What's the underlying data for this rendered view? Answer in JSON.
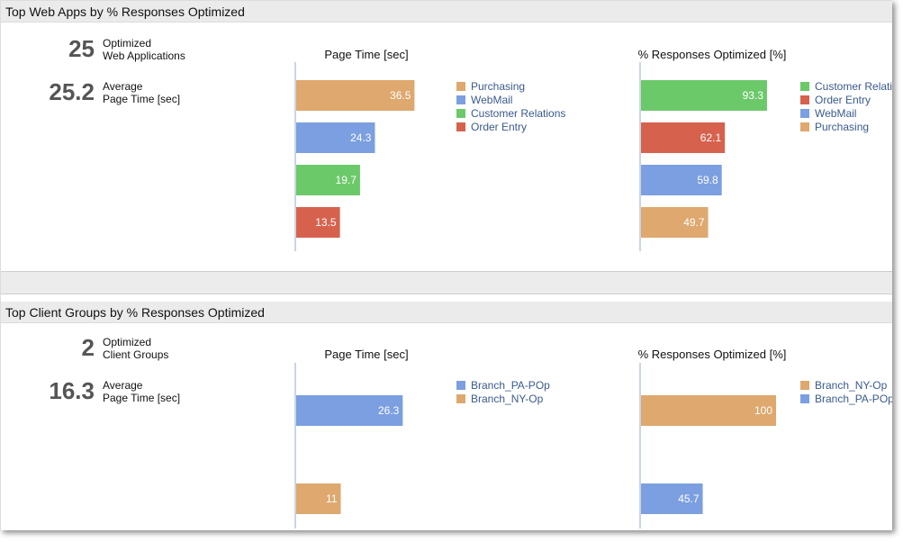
{
  "colors": {
    "purchasing": "#dea86e",
    "webmail": "#7b9fe0",
    "customer_relations": "#6cc96a",
    "order_entry": "#d6624e",
    "branch_pa": "#7b9fe0",
    "branch_ny": "#dea86e",
    "axis": "#b9c7dc"
  },
  "apps": {
    "title": "Top Web Apps by % Responses Optimized",
    "kpi1": {
      "value": "25",
      "line1": "Optimized",
      "line2": "Web Applications"
    },
    "kpi2": {
      "value": "25.2",
      "line1": "Average",
      "line2": "Page Time [sec]"
    }
  },
  "groups": {
    "title": "Top Client Groups by % Responses Optimized",
    "kpi1": {
      "value": "2",
      "line1": "Optimized",
      "line2": "Client Groups"
    },
    "kpi2": {
      "value": "16.3",
      "line1": "Average",
      "line2": "Page Time [sec]"
    }
  },
  "chart_data": [
    {
      "type": "bar",
      "orientation": "horizontal",
      "title": "Page Time [sec]",
      "series": [
        {
          "name": "Purchasing",
          "value": 36.5,
          "label": "36.5",
          "color": "#dea86e"
        },
        {
          "name": "WebMail",
          "value": 24.3,
          "label": "24.3",
          "color": "#7b9fe0"
        },
        {
          "name": "Customer Relations",
          "value": 19.7,
          "label": "19.7",
          "color": "#6cc96a"
        },
        {
          "name": "Order Entry",
          "value": 13.5,
          "label": "13.5",
          "color": "#d6624e"
        }
      ],
      "xlim": [
        0,
        50
      ],
      "legend": "right"
    },
    {
      "type": "bar",
      "orientation": "horizontal",
      "title": "% Responses Optimized [%]",
      "series": [
        {
          "name": "Customer Relations",
          "value": 93.3,
          "label": "93.3",
          "color": "#6cc96a"
        },
        {
          "name": "Order Entry",
          "value": 62.1,
          "label": "62.1",
          "color": "#d6624e"
        },
        {
          "name": "WebMail",
          "value": 59.8,
          "label": "59.8",
          "color": "#7b9fe0"
        },
        {
          "name": "Purchasing",
          "value": 49.7,
          "label": "49.7",
          "color": "#dea86e"
        }
      ],
      "xlim": [
        0,
        100
      ],
      "legend": "right"
    },
    {
      "type": "bar",
      "orientation": "horizontal",
      "title": "Page Time [sec]",
      "series": [
        {
          "name": "Branch_PA-POp",
          "value": 26.3,
          "label": "26.3",
          "color": "#7b9fe0"
        },
        {
          "name": "Branch_NY-Op",
          "value": 11,
          "label": "11",
          "color": "#dea86e"
        }
      ],
      "xlim": [
        0,
        40
      ],
      "legend": "right"
    },
    {
      "type": "bar",
      "orientation": "horizontal",
      "title": "% Responses Optimized [%]",
      "series": [
        {
          "name": "Branch_NY-Op",
          "value": 100,
          "label": "100",
          "color": "#dea86e"
        },
        {
          "name": "Branch_PA-POp",
          "value": 45.7,
          "label": "45.7",
          "color": "#7b9fe0"
        }
      ],
      "xlim": [
        0,
        160
      ],
      "legend": "right"
    }
  ]
}
